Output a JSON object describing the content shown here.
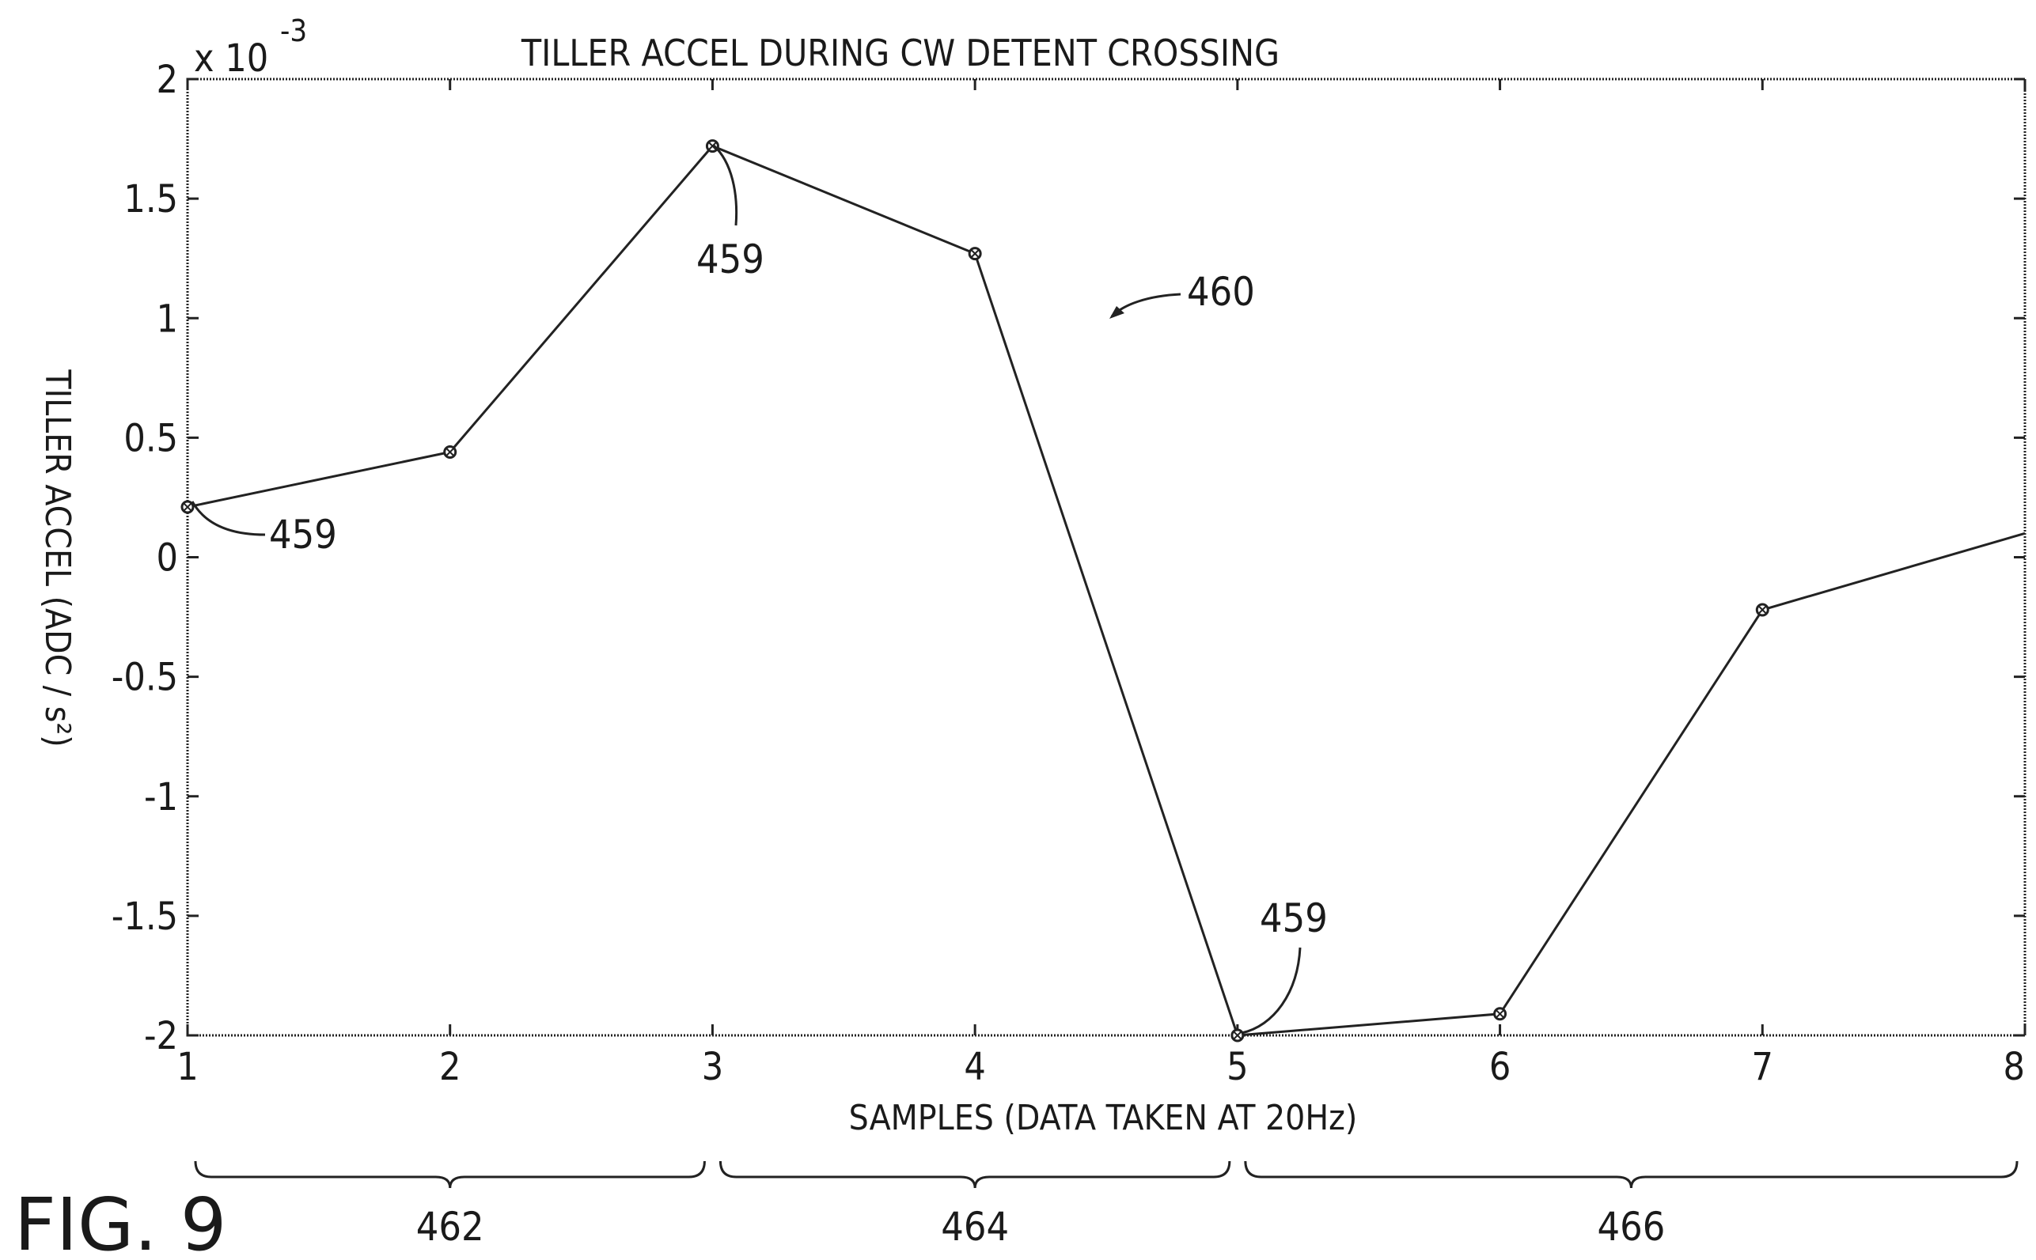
{
  "figure_label": "FIG. 9",
  "chart_data": {
    "type": "line",
    "title": "TILLER  ACCEL  DURING  CW   DETENT  CROSSING",
    "xlabel": "SAMPLES  (DATA  TAKEN   AT  20Hz)",
    "ylabel": "TILLER  ACCEL  (ADC / s²)",
    "y_multiplier": "x 10",
    "y_multiplier_exp": "-3",
    "xlim": [
      1,
      8
    ],
    "ylim": [
      -2,
      2
    ],
    "x_ticks": [
      1,
      2,
      3,
      4,
      5,
      6,
      7,
      8
    ],
    "x_tick_labels": [
      "1",
      "2",
      "3",
      "4",
      "5",
      "6",
      "7",
      "8"
    ],
    "y_ticks": [
      2,
      1.5,
      1,
      0.5,
      0,
      -0.5,
      -1,
      -1.5,
      -2
    ],
    "y_tick_labels": [
      "2",
      "1.5",
      "1",
      "0.5",
      "0",
      "-0.5",
      "-1",
      "-1.5",
      "-2"
    ],
    "grid": false,
    "series": [
      {
        "x": [
          1,
          2,
          3,
          4,
          5,
          6,
          7,
          8
        ],
        "y": [
          0.21,
          0.44,
          1.72,
          1.27,
          -2.0,
          -1.91,
          -0.22,
          0.1
        ],
        "markers": [
          true,
          true,
          true,
          true,
          true,
          true,
          true,
          false
        ]
      }
    ],
    "annotations": [
      {
        "text": "459",
        "target_x": 1,
        "target_y": 0.21
      },
      {
        "text": "459",
        "target_x": 3,
        "target_y": 1.72
      },
      {
        "text": "459",
        "target_x": 5,
        "target_y": -2.0
      },
      {
        "text": "460"
      }
    ],
    "brackets": [
      {
        "label": "462",
        "x_from": 1,
        "x_to": 3
      },
      {
        "label": "464",
        "x_from": 3,
        "x_to": 5
      },
      {
        "label": "466",
        "x_from": 5,
        "x_to": 8
      }
    ]
  }
}
